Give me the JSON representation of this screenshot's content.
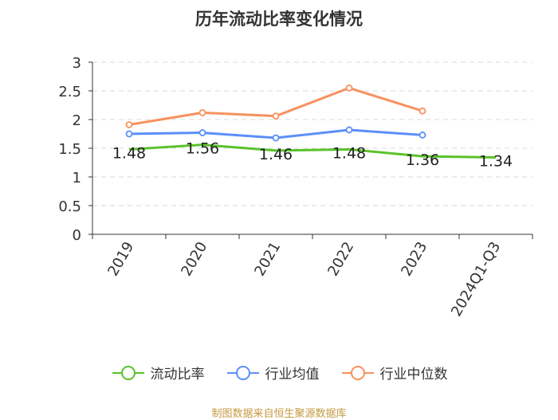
{
  "chart_data": {
    "type": "line",
    "title": "历年流动比率变化情况",
    "categories": [
      "2019",
      "2020",
      "2021",
      "2022",
      "2023",
      "2024Q1-Q3"
    ],
    "ylim": [
      0,
      3
    ],
    "yticks": [
      "0",
      "0.5",
      "1",
      "1.5",
      "2",
      "2.5",
      "3"
    ],
    "grid": true,
    "legend_position": "bottom",
    "series": [
      {
        "name": "流动比率",
        "color": "#5ac22a",
        "values": [
          1.48,
          1.56,
          1.46,
          1.48,
          1.36,
          1.34
        ],
        "labels": [
          "1.48",
          "1.56",
          "1.46",
          "1.48",
          "1.36",
          "1.34"
        ]
      },
      {
        "name": "行业均值",
        "color": "#5b8ff9",
        "values": [
          1.75,
          1.77,
          1.68,
          1.82,
          1.73,
          null
        ]
      },
      {
        "name": "行业中位数",
        "color": "#f7915e",
        "values": [
          1.91,
          2.12,
          2.06,
          2.55,
          2.15,
          null
        ]
      }
    ]
  },
  "footer": {
    "source": "制图数据来自恒生聚源数据库"
  }
}
